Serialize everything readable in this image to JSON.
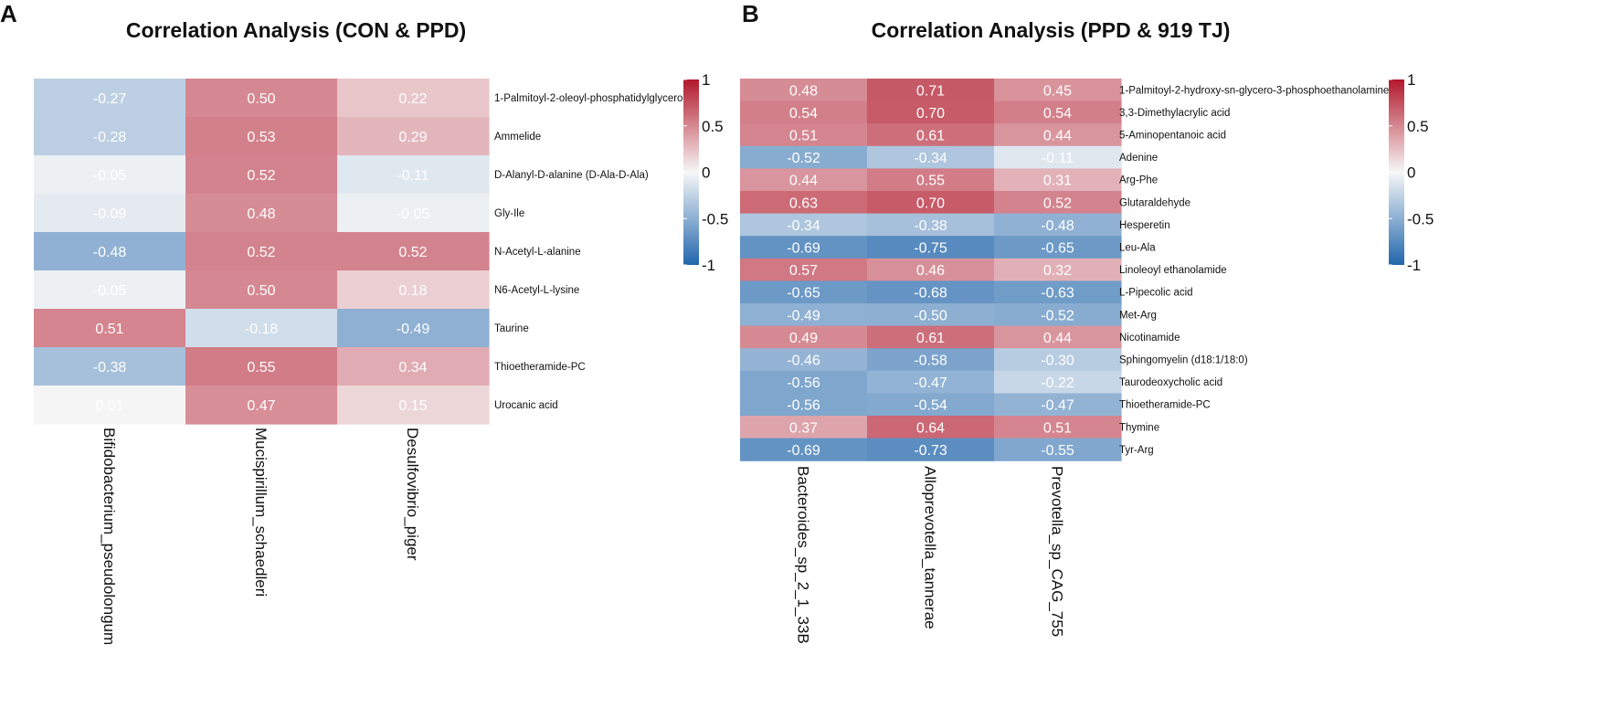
{
  "chart_data": [
    {
      "type": "heatmap",
      "panel_label": "A",
      "title": "Correlation Analysis (CON & PPD)",
      "columns": [
        "Bifidobacterium_pseudolongum",
        "Mucispirillum_schaedleri",
        "Desulfovibrio_piger"
      ],
      "rows": [
        "1-Palmitoyl-2-oleoyl-phosphatidylglycerol",
        "Ammelide",
        "D-Alanyl-D-alanine (D-Ala-D-Ala)",
        "Gly-Ile",
        "N-Acetyl-L-alanine",
        "N6-Acetyl-L-lysine",
        "Taurine",
        "Thioetheramide-PC",
        "Urocanic acid"
      ],
      "values": [
        [
          -0.27,
          0.5,
          0.22
        ],
        [
          -0.28,
          0.53,
          0.29
        ],
        [
          -0.05,
          0.52,
          -0.11
        ],
        [
          -0.09,
          0.48,
          -0.05
        ],
        [
          -0.48,
          0.52,
          0.52
        ],
        [
          -0.05,
          0.5,
          0.18
        ],
        [
          0.51,
          -0.18,
          -0.49
        ],
        [
          -0.38,
          0.55,
          0.34
        ],
        [
          0.01,
          0.47,
          0.15
        ]
      ],
      "value_labels": [
        [
          "-0.27",
          "0.50",
          "0.22"
        ],
        [
          "-0.28",
          "0.53",
          "0.29"
        ],
        [
          "-0.05",
          "0.52",
          "-0.11"
        ],
        [
          "-0.09",
          "0.48",
          "-0.05"
        ],
        [
          "-0.48",
          "0.52",
          "0.52"
        ],
        [
          "-0.05",
          "0.50",
          "0.18"
        ],
        [
          "0.51",
          "-0.18",
          "-0.49"
        ],
        [
          "-0.38",
          "0.55",
          "0.34"
        ],
        [
          "0.01",
          "0.47",
          "0.15"
        ]
      ],
      "colorbar": {
        "range": [
          -1,
          1
        ],
        "ticks": [
          "1",
          "0.5",
          "0",
          "-0.5",
          "-1"
        ]
      },
      "colors": {
        "negative": "#2166ac",
        "neutral": "#f7f7f7",
        "positive": "#b2182b"
      }
    },
    {
      "type": "heatmap",
      "panel_label": "B",
      "title": "Correlation Analysis (PPD & 919 TJ)",
      "columns": [
        "Bacteroides_sp_2_1_33B",
        "Alloprevotella_tannerae",
        "Prevotella_sp_CAG_755"
      ],
      "rows": [
        "1-Palmitoyl-2-hydroxy-sn-glycero-3-phosphoethanolamine",
        "3,3-Dimethylacrylic acid",
        "5-Aminopentanoic acid",
        "Adenine",
        "Arg-Phe",
        "Glutaraldehyde",
        "Hesperetin",
        "Leu-Ala",
        "Linoleoyl ethanolamide",
        "L-Pipecolic acid",
        "Met-Arg",
        "Nicotinamide",
        "Sphingomyelin (d18:1/18:0)",
        "Taurodeoxycholic acid",
        "Thioetheramide-PC",
        "Thymine",
        "Tyr-Arg"
      ],
      "values": [
        [
          0.48,
          0.71,
          0.45
        ],
        [
          0.54,
          0.7,
          0.54
        ],
        [
          0.51,
          0.61,
          0.44
        ],
        [
          -0.52,
          -0.34,
          -0.11
        ],
        [
          0.44,
          0.55,
          0.31
        ],
        [
          0.63,
          0.7,
          0.52
        ],
        [
          -0.34,
          -0.38,
          -0.48
        ],
        [
          -0.69,
          -0.75,
          -0.65
        ],
        [
          0.57,
          0.46,
          0.32
        ],
        [
          -0.65,
          -0.68,
          -0.63
        ],
        [
          -0.49,
          -0.5,
          -0.52
        ],
        [
          0.49,
          0.61,
          0.44
        ],
        [
          -0.46,
          -0.58,
          -0.3
        ],
        [
          -0.56,
          -0.47,
          -0.22
        ],
        [
          -0.56,
          -0.54,
          -0.47
        ],
        [
          0.37,
          0.64,
          0.51
        ],
        [
          -0.69,
          -0.73,
          -0.55
        ]
      ],
      "value_labels": [
        [
          "0.48",
          "0.71",
          "0.45"
        ],
        [
          "0.54",
          "0.70",
          "0.54"
        ],
        [
          "0.51",
          "0.61",
          "0.44"
        ],
        [
          "-0.52",
          "-0.34",
          "-0.11"
        ],
        [
          "0.44",
          "0.55",
          "0.31"
        ],
        [
          "0.63",
          "0.70",
          "0.52"
        ],
        [
          "-0.34",
          "-0.38",
          "-0.48"
        ],
        [
          "-0.69",
          "-0.75",
          "-0.65"
        ],
        [
          "0.57",
          "0.46",
          "0.32"
        ],
        [
          "-0.65",
          "-0.68",
          "-0.63"
        ],
        [
          "-0.49",
          "-0.50",
          "-0.52"
        ],
        [
          "0.49",
          "0.61",
          "0.44"
        ],
        [
          "-0.46",
          "-0.58",
          "-0.30"
        ],
        [
          "-0.56",
          "-0.47",
          "-0.22"
        ],
        [
          "-0.56",
          "-0.54",
          "-0.47"
        ],
        [
          "0.37",
          "0.64",
          "0.51"
        ],
        [
          "-0.69",
          "-0.73",
          "-0.55"
        ]
      ],
      "colorbar": {
        "range": [
          -1,
          1
        ],
        "ticks": [
          "1",
          "0.5",
          "0",
          "-0.5",
          "-1"
        ]
      },
      "colors": {
        "negative": "#2166ac",
        "neutral": "#f7f7f7",
        "positive": "#b2182b"
      }
    }
  ]
}
